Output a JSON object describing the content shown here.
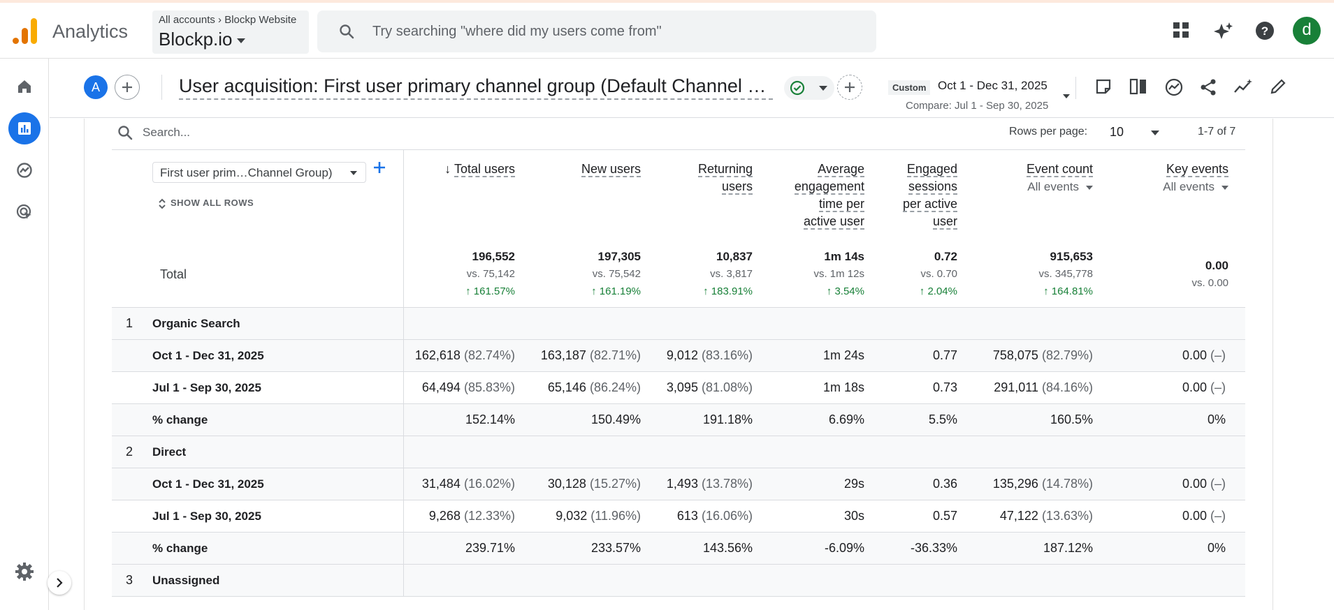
{
  "app": {
    "name": "Analytics",
    "breadcrumb_accounts": "All accounts",
    "breadcrumb_property": "Blockp Website",
    "property": "Blockp.io",
    "search_placeholder": "Try searching \"where did my users come from\"",
    "user_initial": "d"
  },
  "report": {
    "segment_initial": "A",
    "title": "User acquisition: First user primary channel group (Default Channel Group)",
    "date_badge": "Custom",
    "date_range": "Oct 1 - Dec 31, 2025",
    "compare": "Compare: Jul 1 - Sep 30, 2025"
  },
  "table_toolbar": {
    "search_placeholder": "Search...",
    "rows_per_page_label": "Rows per page:",
    "rows_per_page": "10",
    "pager": "1-7 of 7"
  },
  "dimension": {
    "selector": "First user prim…Channel Group)",
    "show_all": "SHOW ALL ROWS",
    "total_label": "Total"
  },
  "columns": [
    {
      "line1": "Total users",
      "line2": "",
      "line3": "",
      "line4": "",
      "sorted": true
    },
    {
      "line1": "New users",
      "line2": "",
      "line3": "",
      "line4": ""
    },
    {
      "line1": "Returning",
      "line2": "users",
      "line3": "",
      "line4": ""
    },
    {
      "line1": "Average",
      "line2": "engagement",
      "line3": "time per",
      "line4": "active user"
    },
    {
      "line1": "Engaged",
      "line2": "sessions",
      "line3": "per active",
      "line4": "user"
    },
    {
      "line1": "Event count",
      "sub": "All events"
    },
    {
      "line1": "Key events",
      "sub": "All events"
    }
  ],
  "totals": [
    {
      "value": "196,552",
      "vs": "vs. 75,142",
      "change": "161.57%"
    },
    {
      "value": "197,305",
      "vs": "vs. 75,542",
      "change": "161.19%"
    },
    {
      "value": "10,837",
      "vs": "vs. 3,817",
      "change": "183.91%"
    },
    {
      "value": "1m 14s",
      "vs": "vs. 1m 12s",
      "change": "3.54%"
    },
    {
      "value": "0.72",
      "vs": "vs. 0.70",
      "change": "2.04%"
    },
    {
      "value": "915,653",
      "vs": "vs. 345,778",
      "change": "164.81%"
    },
    {
      "value": "0.00",
      "vs": "vs. 0.00",
      "change": ""
    }
  ],
  "groups": [
    {
      "index": "1",
      "name": "Organic Search",
      "rows": [
        {
          "label": "Oct 1 - Dec 31, 2025",
          "cells": [
            [
              "162,618",
              "(82.74%)"
            ],
            [
              "163,187",
              "(82.71%)"
            ],
            [
              "9,012",
              "(83.16%)"
            ],
            [
              "1m 24s",
              ""
            ],
            [
              "0.77",
              ""
            ],
            [
              "758,075",
              "(82.79%)"
            ],
            [
              "0.00",
              "(–)"
            ]
          ]
        },
        {
          "label": "Jul 1 - Sep 30, 2025",
          "cells": [
            [
              "64,494",
              "(85.83%)"
            ],
            [
              "65,146",
              "(86.24%)"
            ],
            [
              "3,095",
              "(81.08%)"
            ],
            [
              "1m 18s",
              ""
            ],
            [
              "0.73",
              ""
            ],
            [
              "291,011",
              "(84.16%)"
            ],
            [
              "0.00",
              "(–)"
            ]
          ]
        },
        {
          "label": "% change",
          "cells": [
            [
              "152.14%",
              ""
            ],
            [
              "150.49%",
              ""
            ],
            [
              "191.18%",
              ""
            ],
            [
              "6.69%",
              ""
            ],
            [
              "5.5%",
              ""
            ],
            [
              "160.5%",
              ""
            ],
            [
              "0%",
              ""
            ]
          ]
        }
      ]
    },
    {
      "index": "2",
      "name": "Direct",
      "rows": [
        {
          "label": "Oct 1 - Dec 31, 2025",
          "cells": [
            [
              "31,484",
              "(16.02%)"
            ],
            [
              "30,128",
              "(15.27%)"
            ],
            [
              "1,493",
              "(13.78%)"
            ],
            [
              "29s",
              ""
            ],
            [
              "0.36",
              ""
            ],
            [
              "135,296",
              "(14.78%)"
            ],
            [
              "0.00",
              "(–)"
            ]
          ]
        },
        {
          "label": "Jul 1 - Sep 30, 2025",
          "cells": [
            [
              "9,268",
              "(12.33%)"
            ],
            [
              "9,032",
              "(11.96%)"
            ],
            [
              "613",
              "(16.06%)"
            ],
            [
              "30s",
              ""
            ],
            [
              "0.57",
              ""
            ],
            [
              "47,122",
              "(13.63%)"
            ],
            [
              "0.00",
              "(–)"
            ]
          ]
        },
        {
          "label": "% change",
          "cells": [
            [
              "239.71%",
              ""
            ],
            [
              "233.57%",
              ""
            ],
            [
              "143.56%",
              ""
            ],
            [
              "-6.09%",
              ""
            ],
            [
              "-36.33%",
              ""
            ],
            [
              "187.12%",
              ""
            ],
            [
              "0%",
              ""
            ]
          ]
        }
      ]
    },
    {
      "index": "3",
      "name": "Unassigned",
      "rows": []
    }
  ],
  "colors": {
    "accent": "#1a73e8",
    "positive": "#188038",
    "logo_orange": "#e37400",
    "logo_yellow": "#f9ab00"
  }
}
